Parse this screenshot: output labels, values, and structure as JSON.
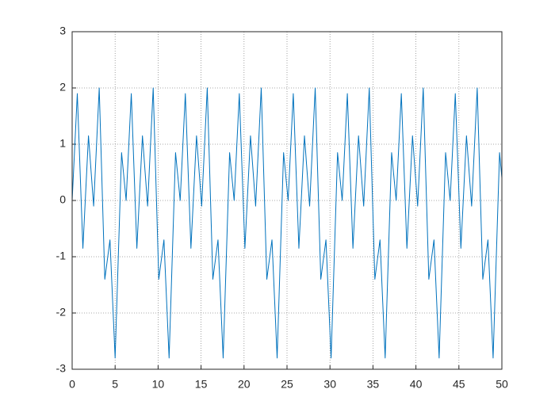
{
  "chart_data": {
    "type": "line",
    "x": [
      0,
      0.6,
      1.25,
      1.9,
      2.5,
      3.15,
      3.8,
      4.4,
      5.0,
      5.75,
      6.28,
      6.88,
      7.53,
      8.18,
      8.78,
      9.43,
      10.08,
      10.68,
      11.28,
      12.03,
      12.57,
      13.17,
      13.82,
      14.47,
      15.07,
      15.72,
      16.37,
      16.97,
      17.57,
      18.32,
      18.85,
      19.45,
      20.1,
      20.75,
      21.35,
      22.0,
      22.65,
      23.25,
      23.85,
      24.6,
      25.13,
      25.73,
      26.38,
      27.03,
      27.63,
      28.28,
      28.93,
      29.53,
      30.13,
      30.88,
      31.42,
      32.02,
      32.67,
      33.32,
      33.92,
      34.57,
      35.22,
      35.82,
      36.42,
      37.17,
      37.7,
      38.3,
      38.95,
      39.6,
      40.2,
      40.85,
      41.5,
      42.1,
      42.7,
      43.45,
      43.98,
      44.58,
      45.23,
      45.88,
      46.48,
      47.13,
      47.78,
      48.38,
      48.98,
      49.73,
      50
    ],
    "series": [
      {
        "color": "#0072bd",
        "values": [
          0,
          1.9,
          -0.85,
          1.15,
          -0.1,
          2.0,
          -1.4,
          -0.7,
          -2.8,
          0.85,
          0,
          1.9,
          -0.85,
          1.15,
          -0.1,
          2.0,
          -1.4,
          -0.7,
          -2.8,
          0.85,
          0,
          1.9,
          -0.85,
          1.15,
          -0.1,
          2.0,
          -1.4,
          -0.7,
          -2.8,
          0.85,
          0,
          1.9,
          -0.85,
          1.15,
          -0.1,
          2.0,
          -1.4,
          -0.7,
          -2.8,
          0.85,
          0,
          1.9,
          -0.85,
          1.15,
          -0.1,
          2.0,
          -1.4,
          -0.7,
          -2.8,
          0.85,
          0,
          1.9,
          -0.85,
          1.15,
          -0.1,
          2.0,
          -1.4,
          -0.7,
          -2.8,
          0.85,
          0,
          1.9,
          -0.85,
          1.15,
          -0.1,
          2.0,
          -1.4,
          -0.7,
          -2.8,
          0.85,
          0,
          1.9,
          -0.85,
          1.15,
          -0.1,
          2.0,
          -1.4,
          -0.7,
          -2.8,
          0.85,
          0.4
        ]
      }
    ],
    "xlim": [
      0,
      50
    ],
    "xticks": [
      0,
      5,
      10,
      15,
      20,
      25,
      30,
      35,
      40,
      45,
      50
    ],
    "ylim": [
      -3,
      3
    ],
    "yticks": [
      -3,
      -2,
      -1,
      0,
      1,
      2,
      3
    ],
    "grid": true
  }
}
